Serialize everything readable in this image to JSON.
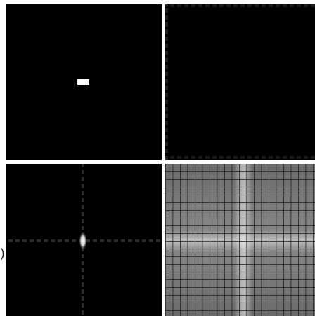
{
  "edge_text": ")"
}
